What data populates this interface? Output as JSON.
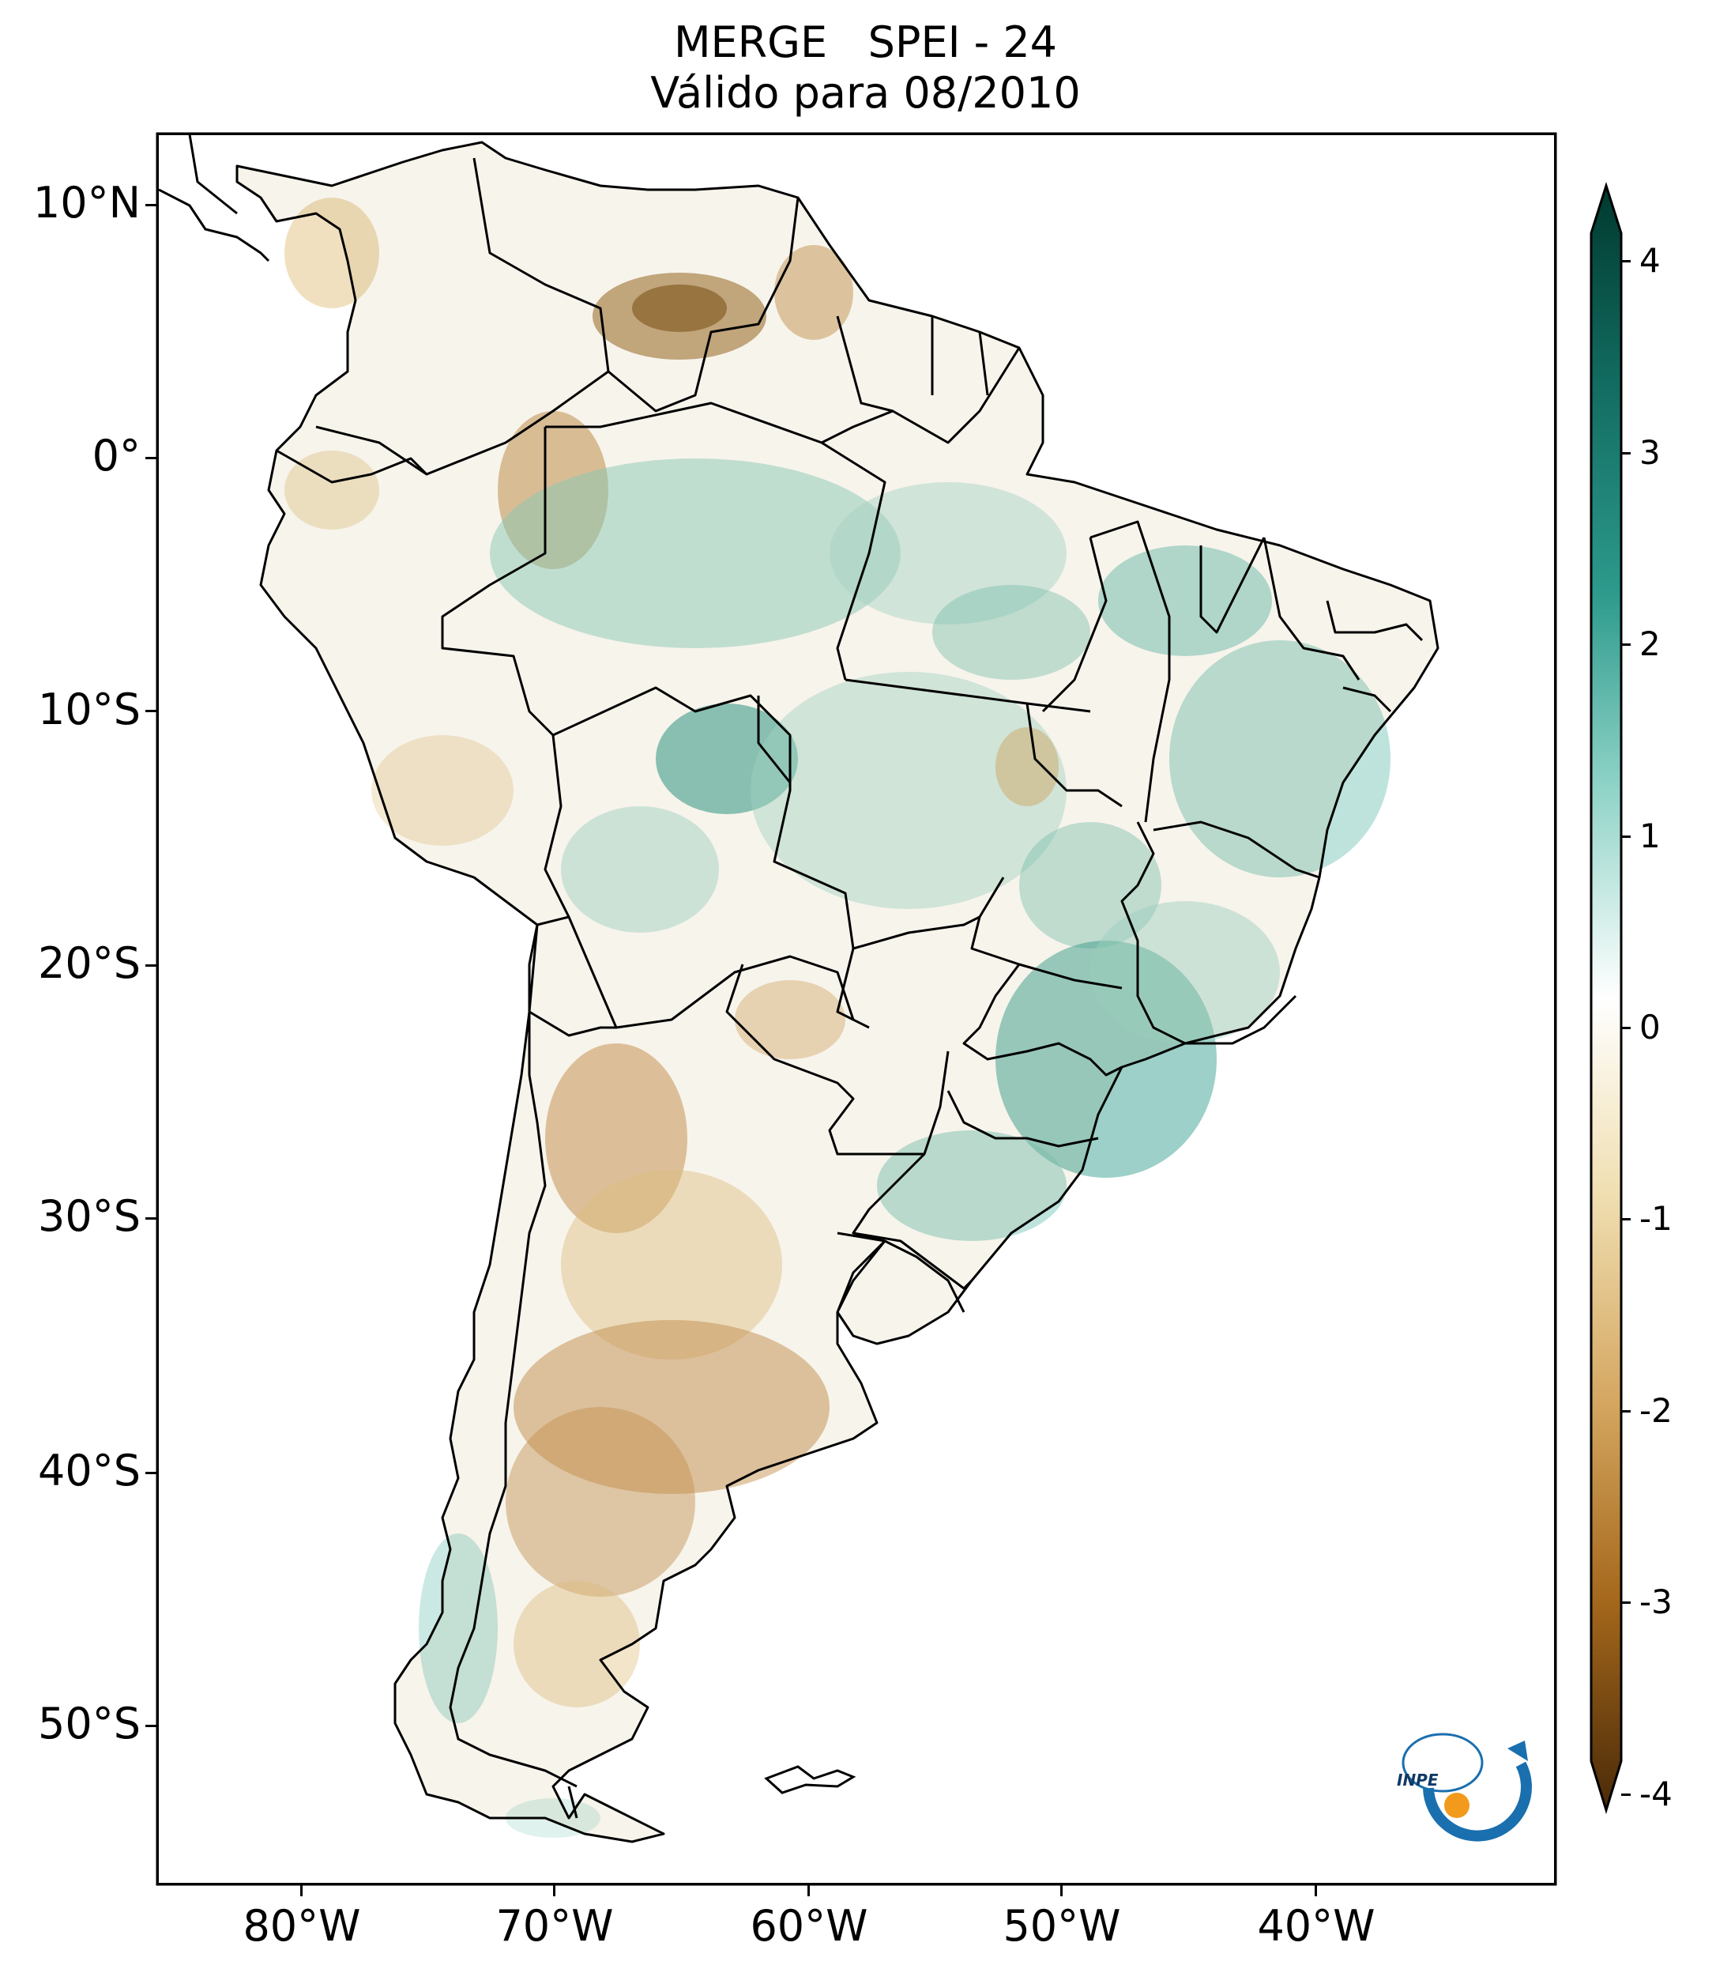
{
  "title": {
    "line1": "MERGE   SPEI - 24",
    "line2": "Válido para 08/2010"
  },
  "axes": {
    "lat_labels": [
      "10°N",
      "0°",
      "10°S",
      "20°S",
      "30°S",
      "40°S",
      "50°S"
    ],
    "lon_labels": [
      "80°W",
      "70°W",
      "60°W",
      "50°W",
      "40°W"
    ]
  },
  "colorbar": {
    "labels": [
      "4",
      "3",
      "2",
      "1",
      "0",
      "-1",
      "-2",
      "-3",
      "-4"
    ],
    "colors": {
      "max": "#00392e",
      "high": "#1f8a7f",
      "mid_high": "#7cc9bd",
      "zero": "#ffffff",
      "mid_low": "#e6cc92",
      "low": "#b07a2b",
      "min": "#4a2a08"
    }
  },
  "logo": {
    "text": "INPE",
    "colors": {
      "ring": "#1a6fae",
      "dot": "#f29a1c"
    }
  }
}
